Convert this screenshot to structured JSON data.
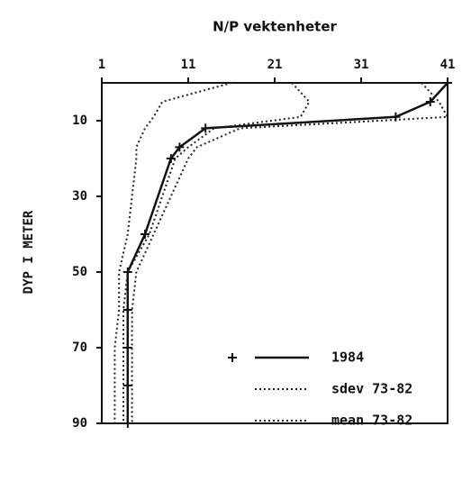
{
  "chart_data": {
    "type": "line",
    "x_axis_label": "N/P vektenheter",
    "y_axis_label": "DYP I METER",
    "y": [
      0,
      5,
      9,
      12,
      17,
      20,
      40,
      50,
      60,
      70,
      80,
      90
    ],
    "series": [
      {
        "name": "1984",
        "color": "#111111",
        "style": "solid",
        "marker": "+",
        "values": [
          41,
          39,
          35,
          13,
          10,
          9,
          6,
          4,
          4,
          4,
          4,
          4
        ]
      },
      {
        "name": "sdev 73-82",
        "color": "#222222",
        "style": "dotted",
        "values": [
          16,
          8,
          7,
          6,
          5,
          5,
          4,
          3,
          3,
          2.5,
          2.5,
          2.5
        ],
        "values_upper": [
          38,
          40,
          41,
          17,
          12,
          11,
          7,
          5,
          4.5,
          4.5,
          4.5,
          4.5
        ]
      },
      {
        "name": "mean 73-82",
        "color": "#222222",
        "style": "dotted",
        "values": [
          23,
          25,
          24,
          14,
          11,
          9.5,
          6.5,
          4,
          3.5,
          3.5,
          3.5,
          3.5
        ]
      }
    ],
    "xlim": [
      1,
      41
    ],
    "xticks": [
      1,
      11,
      21,
      31,
      41
    ],
    "ylim": [
      0,
      90
    ],
    "yticks": [
      10,
      30,
      50,
      70,
      90
    ],
    "y_inverted": true,
    "legend": "lower right"
  }
}
